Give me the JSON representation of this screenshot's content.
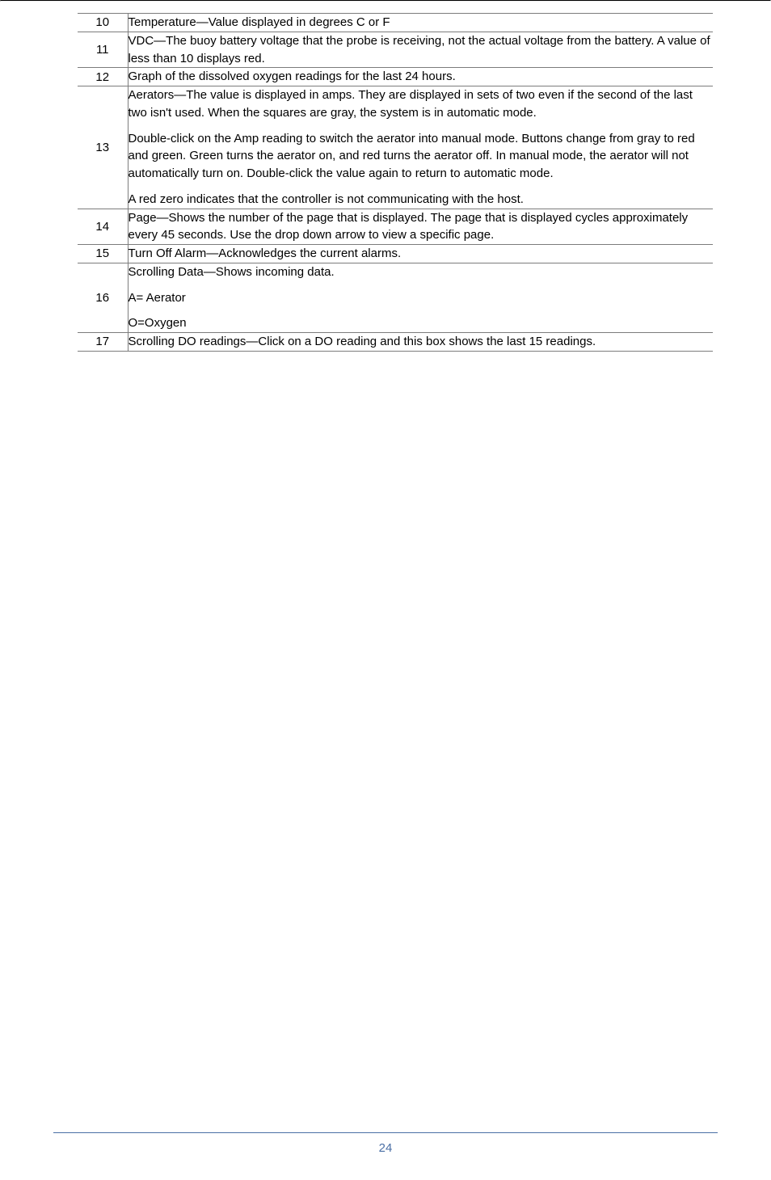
{
  "table": {
    "rows": [
      {
        "num": "10",
        "paras": [
          "Temperature—Value displayed in degrees C or F"
        ]
      },
      {
        "num": "11",
        "paras": [
          "VDC—The buoy battery voltage that the probe is receiving, not the actual voltage from the battery. A value of less than 10 displays red."
        ]
      },
      {
        "num": "12",
        "paras": [
          "Graph of the dissolved oxygen readings for the last 24 hours."
        ]
      },
      {
        "num": "13",
        "paras": [
          "Aerators—The value is displayed in amps. They are displayed in sets of two even if the second of the last two isn't used. When the squares are gray, the system is in automatic mode.",
          "Double-click on the Amp reading to switch the aerator into manual mode. Buttons change from gray to red and green. Green turns the aerator on, and red turns the aerator off. In manual mode, the aerator will not automatically turn on. Double-click the value again to return to automatic mode.",
          "A red zero indicates that the controller is not communicating with the host."
        ]
      },
      {
        "num": "14",
        "paras": [
          "Page—Shows the number of the page that is displayed. The page that is displayed cycles approximately every 45 seconds. Use the drop down arrow to view a specific page."
        ]
      },
      {
        "num": "15",
        "paras": [
          "Turn Off Alarm—Acknowledges the current alarms."
        ]
      },
      {
        "num": "16",
        "paras": [
          "Scrolling Data—Shows incoming data.",
          "A= Aerator",
          "O=Oxygen"
        ]
      },
      {
        "num": "17",
        "paras": [
          "Scrolling DO readings—Click on a DO reading and this box shows the last 15 readings."
        ]
      }
    ]
  },
  "footer": {
    "page_number": "24",
    "color": "#4a6fa5"
  }
}
